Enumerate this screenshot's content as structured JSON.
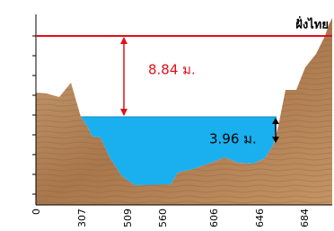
{
  "bank_label": "ฝั่งไทย",
  "annotations": [
    {
      "label": "8.84 ม."
    },
    {
      "label": "3.96 ม."
    }
  ],
  "x_labels": [
    0,
    307,
    509,
    560,
    606,
    646,
    684
  ]
}
